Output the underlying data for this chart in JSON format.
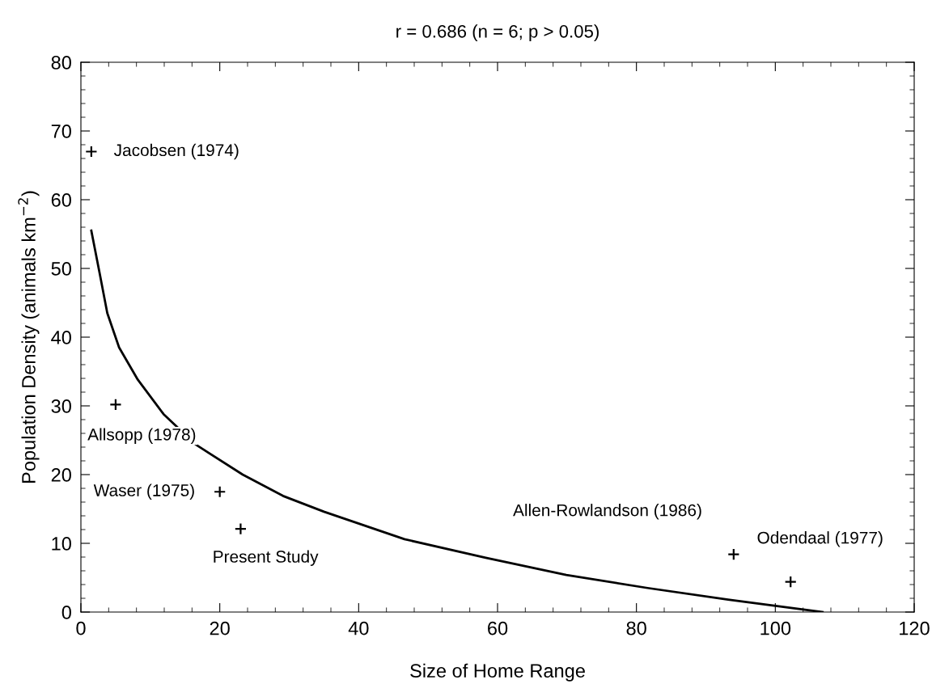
{
  "chart_data": {
    "type": "scatter",
    "title": "r = 0.686 (n = 6; p > 0.05)",
    "xlabel": "Size of Home Range",
    "ylabel": "Population Density (animals km$^{−2}$)",
    "xlim": [
      0,
      120
    ],
    "xticks": [
      0,
      20,
      40,
      60,
      80,
      100,
      120
    ],
    "ylim": [
      0,
      80
    ],
    "yticks": [
      0,
      10,
      20,
      30,
      40,
      50,
      60,
      70,
      80
    ],
    "grid": false,
    "legend": false,
    "marker": "cross",
    "series": [
      {
        "color": "#000000",
        "x": [
          1.5,
          5,
          20,
          23,
          94,
          102.2
        ],
        "values": [
          67,
          30.2,
          17.5,
          12.1,
          8.4,
          4.4
        ]
      },
      {
        "type": "line",
        "color": "#000000",
        "marker": "none",
        "line_style": "solid",
        "x": [
          1.5,
          2.7,
          3.8,
          5.5,
          8.2,
          11.9,
          16.5,
          23.3,
          29.1,
          35.0,
          46.6,
          58.3,
          69.9,
          81.6,
          93.2,
          106.8
        ],
        "values": [
          55.5,
          49.3,
          43.5,
          38.5,
          33.8,
          28.8,
          24.4,
          20.0,
          16.9,
          14.6,
          10.6,
          7.9,
          5.4,
          3.5,
          1.8,
          0
        ]
      }
    ],
    "annotations": [
      {
        "text": "Jacobsen (1974)",
        "x": 1.5,
        "y": 67
      },
      {
        "text": "Allsopp (1978)",
        "x": 5,
        "y": 30.2
      },
      {
        "text": "Waser (1975)",
        "x": 20,
        "y": 17.5
      },
      {
        "text": "Present Study",
        "x": 23,
        "y": 12.1
      },
      {
        "text": "Allen-Rowlandson (1986)",
        "x": 94,
        "y": 8.4
      },
      {
        "text": "Odendaal (1977)",
        "x": 102.2,
        "y": 4.4
      }
    ]
  }
}
